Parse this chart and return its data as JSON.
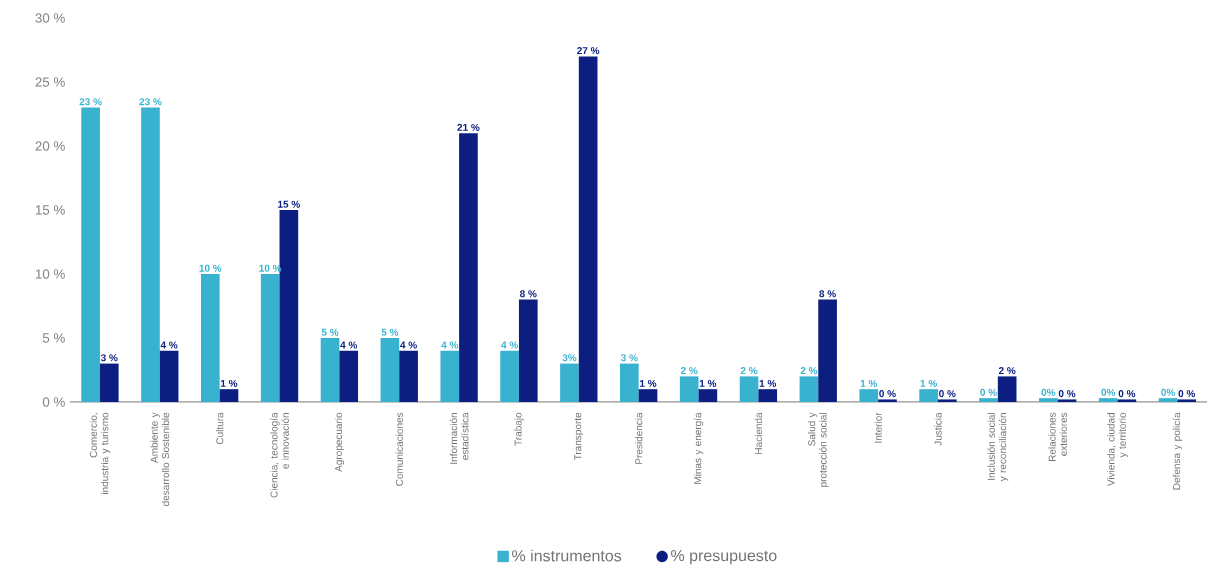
{
  "chart_data": {
    "type": "bar",
    "categories": [
      "Comercio, industria y turismo",
      "Ambiente y desarrollo Sostenible",
      "Cultura",
      "Ciencia, tecnología e innovación",
      "Agropecuario",
      "Comunicaciones",
      "Información estadística",
      "Trabajo",
      "Transporte",
      "Presidencia",
      "Minas y energía",
      "Hacienda",
      "Salud y protección social",
      "Interior",
      "Justicia",
      "Inclusión social y reconciliación",
      "Relaciones exteriores",
      "Vivienda, ciudad y territorio",
      "Defensa y policía"
    ],
    "series": [
      {
        "name": "% instrumentos",
        "color": "#38b2cf",
        "values": [
          23,
          23,
          10,
          10,
          5,
          5,
          4,
          4,
          3,
          3,
          2,
          2,
          2,
          1,
          1,
          0.3,
          0.3,
          0.3,
          0.3
        ],
        "value_labels": [
          "23 %",
          "23 %",
          "10 %",
          "10 %",
          "5 %",
          "5 %",
          "4 %",
          "4 %",
          "3%",
          "3 %",
          "2 %",
          "2 %",
          "2 %",
          "1 %",
          "1 %",
          "0 %",
          "0%",
          "0%",
          "0%"
        ]
      },
      {
        "name": "% presupuesto",
        "color": "#0c1f80",
        "values": [
          3,
          4,
          1,
          15,
          4,
          4,
          21,
          8,
          27,
          1,
          1,
          1,
          8,
          0.2,
          0.2,
          2,
          0.2,
          0.2,
          0.2
        ],
        "value_labels": [
          "3 %",
          "4 %",
          "1 %",
          "15 %",
          "4 %",
          "4 %",
          "21 %",
          "8 %",
          "27 %",
          "1 %",
          "1 %",
          "1 %",
          "8 %",
          "0 %",
          "0 %",
          "2 %",
          "0 %",
          "0 %",
          "0 %"
        ]
      }
    ],
    "ylim": [
      0,
      30
    ],
    "yticks": [
      {
        "value": 0,
        "label": "0 %"
      },
      {
        "value": 5,
        "label": "5 %"
      },
      {
        "value": 10,
        "label": "10 %"
      },
      {
        "value": 15,
        "label": "15 %"
      },
      {
        "value": 20,
        "label": "20 %"
      },
      {
        "value": 25,
        "label": "25 %"
      },
      {
        "value": 30,
        "label": "30 %"
      }
    ],
    "legend": "bottom"
  }
}
